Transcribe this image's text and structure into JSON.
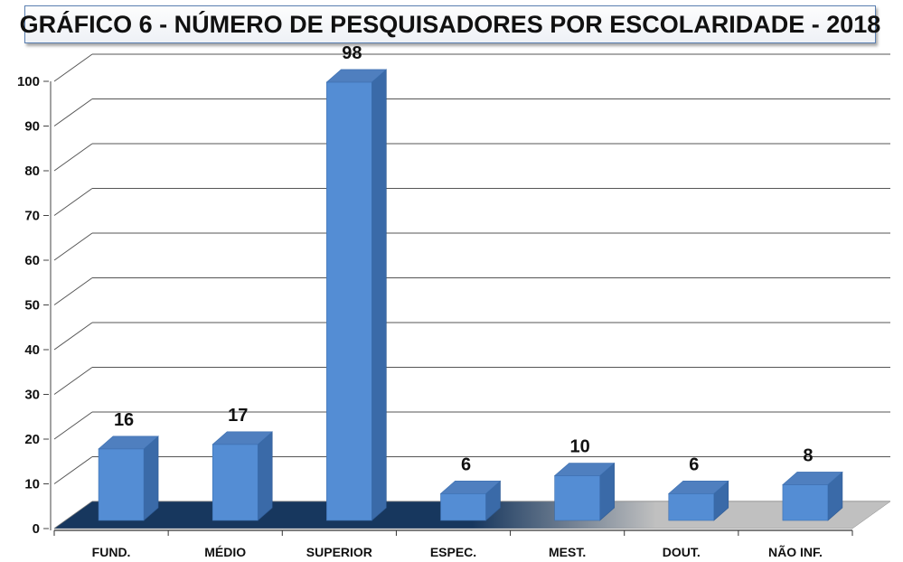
{
  "chart_data": {
    "type": "bar",
    "title": "GRÁFICO 6 - NÚMERO DE PESQUISADORES POR ESCOLARIDADE - 2018",
    "categories": [
      "FUND.",
      "MÉDIO",
      "SUPERIOR",
      "ESPEC.",
      "MEST.",
      "DOUT.",
      "NÃO INF."
    ],
    "values": [
      16,
      17,
      98,
      6,
      10,
      6,
      8
    ],
    "data_labels": [
      "16",
      "17",
      "98",
      "6",
      "10",
      "6",
      "8"
    ],
    "yticks": [
      0,
      10,
      20,
      30,
      40,
      50,
      60,
      70,
      80,
      90,
      100
    ],
    "ylim": [
      0,
      100
    ],
    "xlabel": "",
    "ylabel": "",
    "grid": true,
    "style": "3d-column",
    "colors": {
      "bar_front": "#548dd4",
      "bar_side": "#3a6aa8",
      "bar_top": "#4f7fbf",
      "floor_dark": "#17375e",
      "floor_light": "#c0c0c0",
      "grid": "#555555"
    }
  }
}
